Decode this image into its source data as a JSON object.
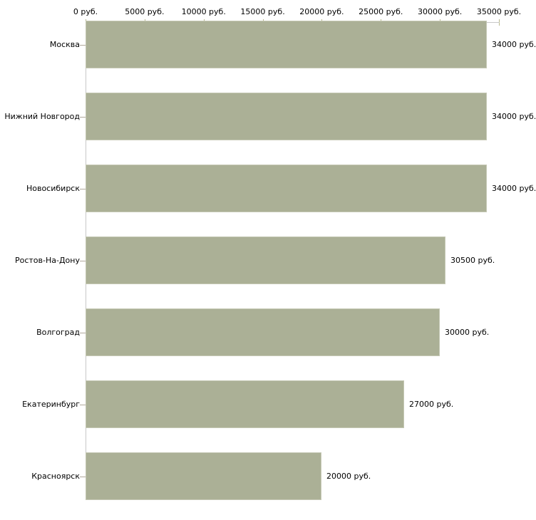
{
  "chart_data": {
    "type": "bar",
    "orientation": "horizontal",
    "title": "",
    "categories": [
      "Москва",
      "Нижний Новгород",
      "Новосибирск",
      "Ростов-На-Дону",
      "Волгоград",
      "Екатеринбург",
      "Красноярск"
    ],
    "values": [
      34000,
      34000,
      34000,
      30500,
      30000,
      27000,
      20000
    ],
    "value_labels": [
      "34000 руб.",
      "34000 руб.",
      "34000 руб.",
      "30500 руб.",
      "30000 руб.",
      "27000 руб.",
      "20000 руб."
    ],
    "unit": "руб.",
    "x_axis": {
      "position": "top",
      "xlim": [
        0,
        35000
      ],
      "ticks": [
        0,
        5000,
        10000,
        15000,
        20000,
        25000,
        30000,
        35000
      ],
      "tick_labels": [
        "0 руб.",
        "5000 руб.",
        "10000 руб.",
        "15000 руб.",
        "20000 руб.",
        "25000 руб.",
        "30000 руб.",
        "35000 руб."
      ]
    },
    "legend": false,
    "grid": false,
    "colors": {
      "bar_fill": "#abb096",
      "bar_border": "#c5c8b4",
      "axis_line": "#c8c8c8",
      "axis_tick": "#b9b98e",
      "category_tick": "#b0a89b",
      "text": "#000000",
      "background": "#ffffff"
    }
  }
}
